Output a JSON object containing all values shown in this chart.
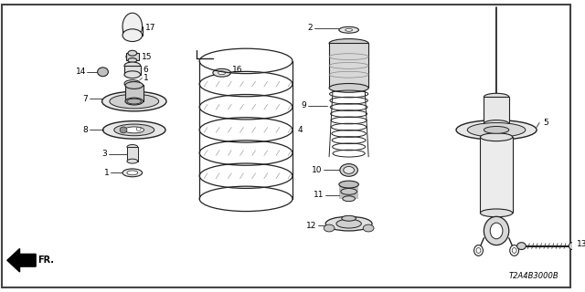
{
  "bg_color": "#ffffff",
  "line_color": "#222222",
  "text_color": "#000000",
  "part_code": "T2A4B3000B",
  "border_color": "#555555"
}
